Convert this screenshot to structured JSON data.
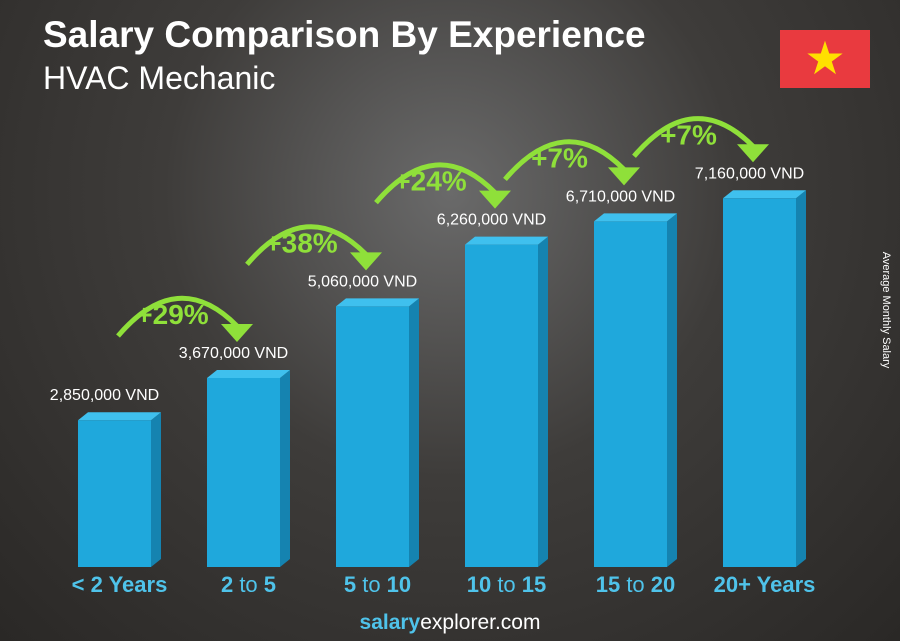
{
  "chart_data": {
    "type": "bar",
    "title": "Salary Comparison By Experience",
    "subtitle": "HVAC Mechanic",
    "ylabel": "Average Monthly Salary",
    "categories": [
      "< 2 Years",
      "2 to 5",
      "5 to 10",
      "10 to 15",
      "15 to 20",
      "20+ Years"
    ],
    "values": [
      2850000,
      3670000,
      5060000,
      6260000,
      6710000,
      7160000
    ],
    "value_labels": [
      "2,850,000 VND",
      "3,670,000 VND",
      "5,060,000 VND",
      "6,260,000 VND",
      "6,710,000 VND",
      "7,160,000 VND"
    ],
    "changes": [
      "+29%",
      "+38%",
      "+24%",
      "+7%",
      "+7%"
    ],
    "ylim": [
      0,
      7500000
    ],
    "grid": false,
    "colors": {
      "bar": "#1fa8dc",
      "bar_side": "#1583b0",
      "bar_top": "#3fc0ee",
      "change": "#8fe03a",
      "category": "#4fc3ea"
    }
  },
  "flag_icon": "vietnam-flag-star",
  "footer": {
    "brand_bold": "salary",
    "brand_rest": "explorer.com"
  }
}
